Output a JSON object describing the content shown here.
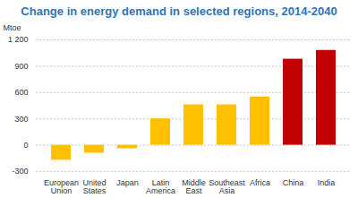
{
  "chart_data": {
    "type": "bar",
    "title": "Change in energy demand in selected regions, 2014-2040",
    "y_label": "Mtoe",
    "categories": [
      "European Union",
      "United States",
      "Japan",
      "Latin America",
      "Middle East",
      "Southeast Asia",
      "Africa",
      "China",
      "India"
    ],
    "values": [
      -170,
      -90,
      -40,
      300,
      460,
      460,
      550,
      980,
      1080
    ],
    "colors": [
      "#FFC000",
      "#FFC000",
      "#FFC000",
      "#FFC000",
      "#FFC000",
      "#FFC000",
      "#FFC000",
      "#C00000",
      "#C00000"
    ],
    "ylim": [
      -300,
      1200
    ],
    "yticks": [
      -300,
      0,
      300,
      600,
      900,
      {
        "value": 1200,
        "label": "1 200"
      }
    ],
    "grid": true
  }
}
